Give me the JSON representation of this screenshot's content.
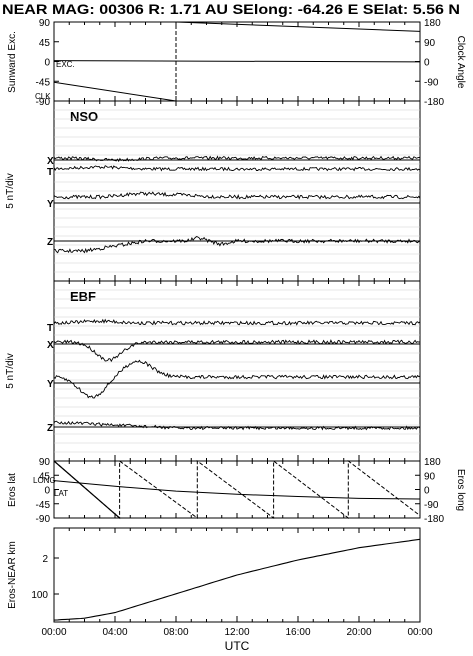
{
  "header": {
    "title": "NEAR MAG: 00306  R: 1.71 AU  SElong:  -64.26 E  SElat:     5.56 N"
  },
  "x_axis": {
    "label": "UTC",
    "ticks": [
      "00:00",
      "04:00",
      "08:00",
      "12:00",
      "16:00",
      "20:00",
      "00:00"
    ]
  },
  "chart_data": [
    {
      "type": "line",
      "panel": "angles",
      "ylabel_left": "Sunward Exc.",
      "ylabel_right": "Clock Angle",
      "left_ticks": [
        "90",
        "45",
        "0",
        "-45",
        "-90"
      ],
      "right_ticks": [
        "180",
        "90",
        "0",
        "-90",
        "-180"
      ],
      "ylim_left": [
        -90,
        90
      ],
      "ylim_right": [
        -180,
        180
      ],
      "x_hours": [
        0,
        24
      ],
      "annotations": [
        "EXC.",
        "CLK"
      ],
      "series": [
        {
          "name": "EXC.",
          "axis": "left",
          "x": [
            0,
            24
          ],
          "y": [
            2,
            -1
          ]
        },
        {
          "name": "CLK",
          "axis": "right",
          "x": [
            0,
            8,
            8,
            24
          ],
          "y": [
            -95,
            -180,
            180,
            137
          ]
        }
      ]
    },
    {
      "type": "line",
      "panel": "NSO",
      "title": "NSO",
      "ylabel": "5 nT/div",
      "components": [
        "T",
        "X",
        "Y",
        "Z"
      ],
      "x_hours": [
        0,
        24
      ],
      "grid": true
    },
    {
      "type": "line",
      "panel": "EBF",
      "title": "EBF",
      "ylabel": "5 nT/div",
      "components": [
        "T",
        "X",
        "Y",
        "Z"
      ],
      "x_hours": [
        0,
        24
      ],
      "grid": true
    },
    {
      "type": "line",
      "panel": "eros",
      "ylabel_left": "Eros lat",
      "ylabel_right": "Eros long",
      "left_ticks": [
        "90",
        "45",
        "0",
        "-45",
        "-90"
      ],
      "right_ticks": [
        "180",
        "90",
        "0",
        "-90",
        "-180"
      ],
      "ylim_left": [
        -90,
        90
      ],
      "ylim_right": [
        -180,
        180
      ],
      "annotations": [
        "LONG",
        "LAT"
      ],
      "series": [
        {
          "name": "LAT",
          "axis": "left",
          "x": [
            0,
            4,
            8,
            12,
            16,
            20,
            24
          ],
          "y": [
            28,
            10,
            -5,
            -15,
            -22,
            -28,
            -30
          ]
        },
        {
          "name": "LONG",
          "axis": "right",
          "x": [
            0,
            4.3,
            4.3,
            9.4,
            9.4,
            14.4,
            14.4,
            19.3,
            19.3,
            24
          ],
          "y": [
            180,
            -180,
            180,
            -180,
            180,
            -180,
            180,
            -180,
            180,
            -165
          ]
        }
      ]
    },
    {
      "type": "line",
      "panel": "distance",
      "ylabel": "Eros-NEAR km",
      "ticks": [
        "2",
        "100"
      ],
      "series": [
        {
          "name": "",
          "x": [
            0,
            2,
            4,
            8,
            12,
            16,
            20,
            24
          ],
          "y": [
            0.02,
            0.04,
            0.1,
            0.3,
            0.5,
            0.66,
            0.79,
            0.88
          ]
        }
      ]
    }
  ]
}
